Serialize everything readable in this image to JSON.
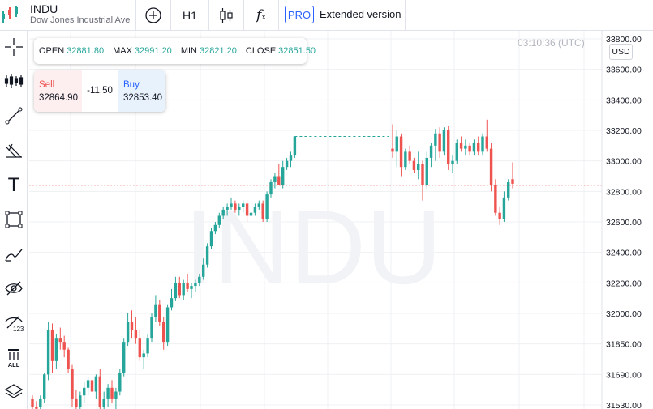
{
  "header": {
    "symbol": "INDU",
    "description": "Dow Jones Industrial Ave",
    "timeframe": "H1",
    "pro_badge": "PRO",
    "extended_label": "Extended version"
  },
  "legend": {
    "open_label": "OPEN",
    "open": "32881.80",
    "max_label": "MAX",
    "max": "32991.20",
    "min_label": "MIN",
    "min": "32821.20",
    "close_label": "CLOSE",
    "close": "32851.50"
  },
  "trade": {
    "sell_label": "Sell",
    "sell_price": "32864.90",
    "spread": "-11.50",
    "buy_label": "Buy",
    "buy_price": "32853.40"
  },
  "clock": "03:10:36 (UTC)",
  "currency": "USD",
  "watermark": "INDU",
  "colors": {
    "up": "#26a69a",
    "down": "#ef5350",
    "accent": "#2962ff"
  },
  "left_toolbar": [
    "crosshair-icon",
    "indicators-icon",
    "trend-line-icon",
    "fib-icon",
    "text-icon",
    "rectangle-icon",
    "brush-icon",
    "hide-drawings-icon",
    "hide-numbers-icon",
    "delete-all-icon",
    "layers-icon"
  ],
  "left_toolbar_all_label": "ALL",
  "left_toolbar_123_label": "123",
  "chart_data": {
    "type": "candlestick",
    "y_ticks": [
      "33800.00",
      "33600.00",
      "33400.00",
      "33200.00",
      "33000.00",
      "32800.00",
      "32600.00",
      "32400.00",
      "32200.00",
      "32000.00",
      "31850.00",
      "31690.00",
      "31530.00"
    ],
    "current_price": 32840,
    "previous_high_line": 33160,
    "grid": true,
    "candles": [
      [
        31560,
        31580,
        31480,
        31520
      ],
      [
        31520,
        31550,
        31450,
        31510
      ],
      [
        31520,
        31580,
        31470,
        31560
      ],
      [
        31560,
        31700,
        31540,
        31690
      ],
      [
        31690,
        31960,
        31660,
        31920
      ],
      [
        31920,
        31950,
        31700,
        31760
      ],
      [
        31760,
        31900,
        31720,
        31880
      ],
      [
        31880,
        31930,
        31820,
        31860
      ],
      [
        31860,
        31890,
        31780,
        31820
      ],
      [
        31820,
        31830,
        31700,
        31720
      ],
      [
        31720,
        31740,
        31520,
        31560
      ],
      [
        31560,
        31610,
        31480,
        31520
      ],
      [
        31520,
        31600,
        31460,
        31580
      ],
      [
        31580,
        31650,
        31540,
        31620
      ],
      [
        31620,
        31680,
        31580,
        31660
      ],
      [
        31660,
        31700,
        31560,
        31600
      ],
      [
        31600,
        31690,
        31560,
        31680
      ],
      [
        31680,
        31720,
        31490,
        31520
      ],
      [
        31520,
        31600,
        31450,
        31560
      ],
      [
        31560,
        31640,
        31520,
        31620
      ],
      [
        31620,
        31660,
        31540,
        31560
      ],
      [
        31560,
        31620,
        31500,
        31600
      ],
      [
        31600,
        31720,
        31580,
        31700
      ],
      [
        31700,
        31880,
        31680,
        31860
      ],
      [
        31860,
        32000,
        31840,
        31960
      ],
      [
        31960,
        32020,
        31880,
        31920
      ],
      [
        31920,
        31980,
        31850,
        31880
      ],
      [
        31880,
        31920,
        31760,
        31780
      ],
      [
        31780,
        31820,
        31720,
        31800
      ],
      [
        31800,
        31900,
        31780,
        31880
      ],
      [
        31880,
        32000,
        31860,
        31980
      ],
      [
        31980,
        32120,
        31960,
        32060
      ],
      [
        32060,
        32090,
        31940,
        31960
      ],
      [
        31960,
        31980,
        31820,
        31860
      ],
      [
        31860,
        32060,
        31840,
        32040
      ],
      [
        32040,
        32160,
        32020,
        32100
      ],
      [
        32100,
        32240,
        32080,
        32200
      ],
      [
        32200,
        32240,
        32100,
        32120
      ],
      [
        32120,
        32220,
        32090,
        32200
      ],
      [
        32200,
        32260,
        32140,
        32160
      ],
      [
        32160,
        32200,
        32100,
        32180
      ],
      [
        32180,
        32220,
        32140,
        32200
      ],
      [
        32200,
        32260,
        32180,
        32240
      ],
      [
        32240,
        32360,
        32220,
        32320
      ],
      [
        32320,
        32460,
        32300,
        32440
      ],
      [
        32440,
        32560,
        32420,
        32540
      ],
      [
        32540,
        32600,
        32520,
        32580
      ],
      [
        32580,
        32660,
        32560,
        32640
      ],
      [
        32640,
        32700,
        32620,
        32680
      ],
      [
        32680,
        32720,
        32640,
        32700
      ],
      [
        32700,
        32760,
        32680,
        32720
      ],
      [
        32720,
        32740,
        32660,
        32680
      ],
      [
        32680,
        32720,
        32640,
        32700
      ],
      [
        32700,
        32740,
        32660,
        32720
      ],
      [
        32720,
        32740,
        32600,
        32640
      ],
      [
        32640,
        32700,
        32620,
        32660
      ],
      [
        32660,
        32720,
        32640,
        32700
      ],
      [
        32700,
        32740,
        32680,
        32720
      ],
      [
        32720,
        32740,
        32600,
        32620
      ],
      [
        32620,
        32800,
        32600,
        32780
      ],
      [
        32780,
        32880,
        32760,
        32860
      ],
      [
        32860,
        32920,
        32820,
        32900
      ],
      [
        32900,
        32980,
        32840,
        32840
      ],
      [
        32840,
        33000,
        32820,
        32960
      ],
      [
        32960,
        33020,
        32940,
        33000
      ],
      [
        33000,
        33060,
        32960,
        33040
      ],
      [
        33040,
        33160,
        33020,
        33160
      ],
      [
        33080,
        33240,
        33020,
        33060
      ],
      [
        33060,
        33200,
        32960,
        33160
      ],
      [
        33160,
        33180,
        32900,
        32960
      ],
      [
        32960,
        33080,
        32940,
        33060
      ],
      [
        33060,
        33100,
        32980,
        33000
      ],
      [
        33000,
        33020,
        32920,
        32940
      ],
      [
        32940,
        33060,
        32880,
        32980
      ],
      [
        32980,
        33000,
        32740,
        32840
      ],
      [
        32840,
        33060,
        32820,
        33020
      ],
      [
        33020,
        33120,
        32960,
        33100
      ],
      [
        33100,
        33210,
        33000,
        33180
      ],
      [
        33180,
        33220,
        33020,
        33060
      ],
      [
        33060,
        33220,
        33040,
        33200
      ],
      [
        33200,
        33230,
        32940,
        32980
      ],
      [
        32980,
        33040,
        32920,
        33000
      ],
      [
        33000,
        33140,
        32980,
        33120
      ],
      [
        33120,
        33160,
        33060,
        33080
      ],
      [
        33080,
        33140,
        33040,
        33100
      ],
      [
        33100,
        33120,
        33040,
        33060
      ],
      [
        33060,
        33140,
        33040,
        33120
      ],
      [
        33120,
        33160,
        33040,
        33060
      ],
      [
        33060,
        33180,
        33040,
        33160
      ],
      [
        33160,
        33270,
        33060,
        33080
      ],
      [
        33080,
        33120,
        32800,
        32840
      ],
      [
        32840,
        32880,
        32640,
        32660
      ],
      [
        32660,
        32700,
        32580,
        32620
      ],
      [
        32620,
        32800,
        32600,
        32760
      ],
      [
        32760,
        32880,
        32740,
        32860
      ],
      [
        32880,
        32990,
        32820,
        32850
      ]
    ]
  }
}
